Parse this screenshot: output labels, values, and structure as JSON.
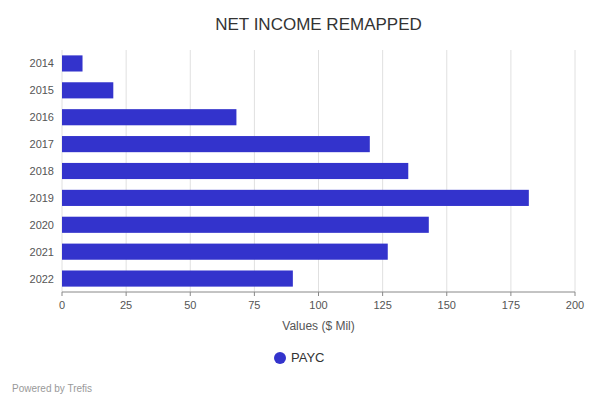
{
  "chart_data": {
    "type": "bar",
    "orientation": "horizontal",
    "title": "NET INCOME REMAPPED",
    "xlabel": "Values ($ Mil)",
    "categories": [
      "2014",
      "2015",
      "2016",
      "2017",
      "2018",
      "2019",
      "2020",
      "2021",
      "2022"
    ],
    "series": [
      {
        "name": "PAYC",
        "color": "#3333cc",
        "values": [
          8,
          20,
          68,
          120,
          135,
          182,
          143,
          127,
          90
        ]
      }
    ],
    "xlim": [
      0,
      200
    ],
    "xticks": [
      0,
      25,
      50,
      75,
      100,
      125,
      150,
      175,
      200
    ],
    "grid": true,
    "legend": "bottom",
    "annotations": [
      "Powered by Trefis"
    ]
  }
}
